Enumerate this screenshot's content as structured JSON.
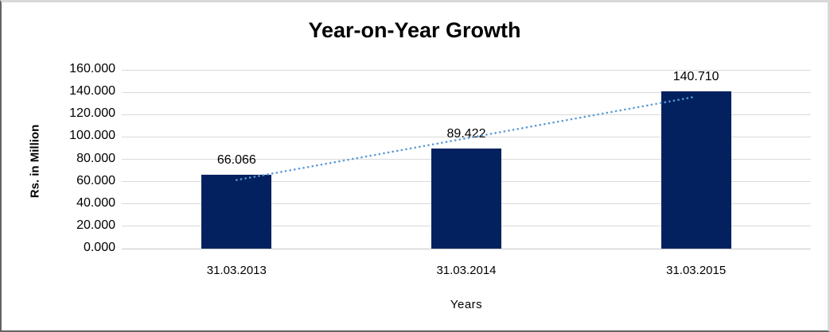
{
  "chart_data": {
    "type": "bar",
    "title": "Year-on-Year Growth",
    "xlabel": "Years",
    "ylabel": "Rs. in Million",
    "categories": [
      "31.03.2013",
      "31.03.2014",
      "31.03.2015"
    ],
    "values": [
      66.066,
      89.422,
      140.71
    ],
    "value_labels": [
      "66.066",
      "89.422",
      "140.710"
    ],
    "ylim": [
      0,
      160
    ],
    "ytick_step": 20,
    "ytick_labels": [
      "0.000",
      "20.000",
      "40.000",
      "60.000",
      "80.000",
      "100.000",
      "120.000",
      "140.000",
      "160.000"
    ],
    "grid": true,
    "legend": "none",
    "trendline": {
      "type": "linear",
      "style": "dotted",
      "color": "#5B9BD5"
    },
    "colors": {
      "bar": "#03215F",
      "gridline": "#D9D9D9",
      "axis_line": "#C6C6C6",
      "text": "#000000",
      "background": "#FFFFFF"
    }
  }
}
